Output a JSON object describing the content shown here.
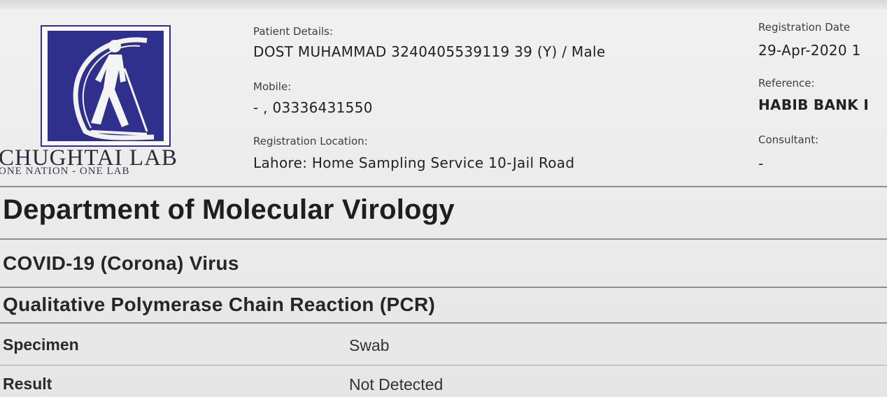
{
  "lab": {
    "name": "CHUGHTAI LAB",
    "tagline": "ONE NATION - ONE LAB",
    "logo_icon": "walking-man-emblem"
  },
  "patient": {
    "details_label": "Patient Details:",
    "details_value": "DOST MUHAMMAD 3240405539119  39 (Y) / Male",
    "mobile_label": "Mobile:",
    "mobile_value": "- , 03336431550",
    "location_label": "Registration Location:",
    "location_value": "Lahore: Home Sampling Service 10-Jail Road"
  },
  "registration": {
    "date_label": "Registration Date",
    "date_value": "29-Apr-2020 1",
    "reference_label": "Reference:",
    "reference_value": "HABIB BANK I",
    "consultant_label": "Consultant:",
    "consultant_value": "-"
  },
  "report": {
    "department": "Department of Molecular Virology",
    "test_name": "COVID-19 (Corona) Virus",
    "method": "Qualitative Polymerase Chain Reaction (PCR)",
    "rows": [
      {
        "label": "Specimen",
        "value": "Swab"
      },
      {
        "label": "Result",
        "value": "Not Detected"
      }
    ]
  },
  "colors": {
    "logo_blue": "#2f2f8c",
    "text": "#1c1c1c",
    "rule": "#8d8d8d"
  }
}
